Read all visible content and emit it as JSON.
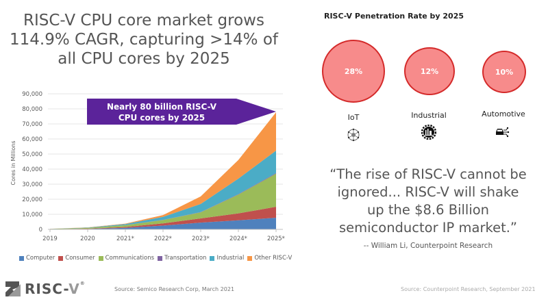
{
  "headline": {
    "line1": "RISC-V CPU core market grows",
    "line2": "114.9% CAGR, capturing >14% of",
    "line3": "all CPU cores by 2025"
  },
  "chart_data": {
    "type": "area",
    "stacked": true,
    "title": "",
    "xlabel": "",
    "ylabel": "Cores in Millions",
    "categories": [
      "2019",
      "2020",
      "2021*",
      "2022*",
      "2023*",
      "2024*",
      "2025*"
    ],
    "ylim": [
      0,
      90000
    ],
    "yticks": [
      "0",
      "10,000",
      "20,000",
      "30,000",
      "40,000",
      "50,000",
      "60,000",
      "70,000",
      "80,000",
      "90,000"
    ],
    "ytick_values": [
      0,
      10000,
      20000,
      30000,
      40000,
      50000,
      60000,
      70000,
      80000,
      90000
    ],
    "grid": true,
    "legend_position": "bottom",
    "series": [
      {
        "name": "Computer",
        "color": "#4f81bd",
        "values": [
          100,
          300,
          1000,
          2500,
          4500,
          6000,
          7700
        ]
      },
      {
        "name": "Consumer",
        "color": "#c0504d",
        "values": [
          50,
          150,
          600,
          1500,
          2800,
          4600,
          7300
        ]
      },
      {
        "name": "Communications",
        "color": "#9bbb59",
        "values": [
          150,
          500,
          1200,
          2200,
          4000,
          12500,
          22000
        ]
      },
      {
        "name": "Transportation",
        "color": "#8064a2",
        "values": [
          5,
          10,
          30,
          80,
          150,
          300,
          400
        ]
      },
      {
        "name": "Industrial",
        "color": "#4bacc6",
        "values": [
          50,
          250,
          700,
          2000,
          5400,
          10300,
          14900
        ]
      },
      {
        "name": "Other RISC-V",
        "color": "#f79646",
        "values": [
          20,
          80,
          300,
          1200,
          5000,
          12400,
          25400
        ]
      }
    ],
    "annotation": {
      "line1": "Nearly 80 billion RISC-V",
      "line2": "CPU cores by 2025",
      "color": "#5b239a",
      "points_to": {
        "x": "2025*",
        "y": 79000
      }
    }
  },
  "penetration": {
    "title": "RISC-V Penetration Rate by 2025",
    "segments": [
      {
        "label": "IoT",
        "value": "28%",
        "icon": "iot-network-icon"
      },
      {
        "label": "Industrial",
        "value": "12%",
        "icon": "industrial-gear-icon"
      },
      {
        "label": "Automotive",
        "value": "10%",
        "icon": "automotive-car-icon"
      }
    ]
  },
  "quote": {
    "line1": "“The rise of RISC-V cannot be",
    "line2": "ignored... RISC-V will shake",
    "line3": "up the $8.6 Billion",
    "line4": "semiconductor IP market.”",
    "attribution": "-- William Li, Counterpoint Research"
  },
  "footer": {
    "logo_text_main": "RISC-",
    "logo_text_v": "V",
    "logo_reg": "®",
    "source_left": "Source: Semico Research Corp, March 2021",
    "source_right": "Source: Counterpoint Research, September 2021"
  }
}
